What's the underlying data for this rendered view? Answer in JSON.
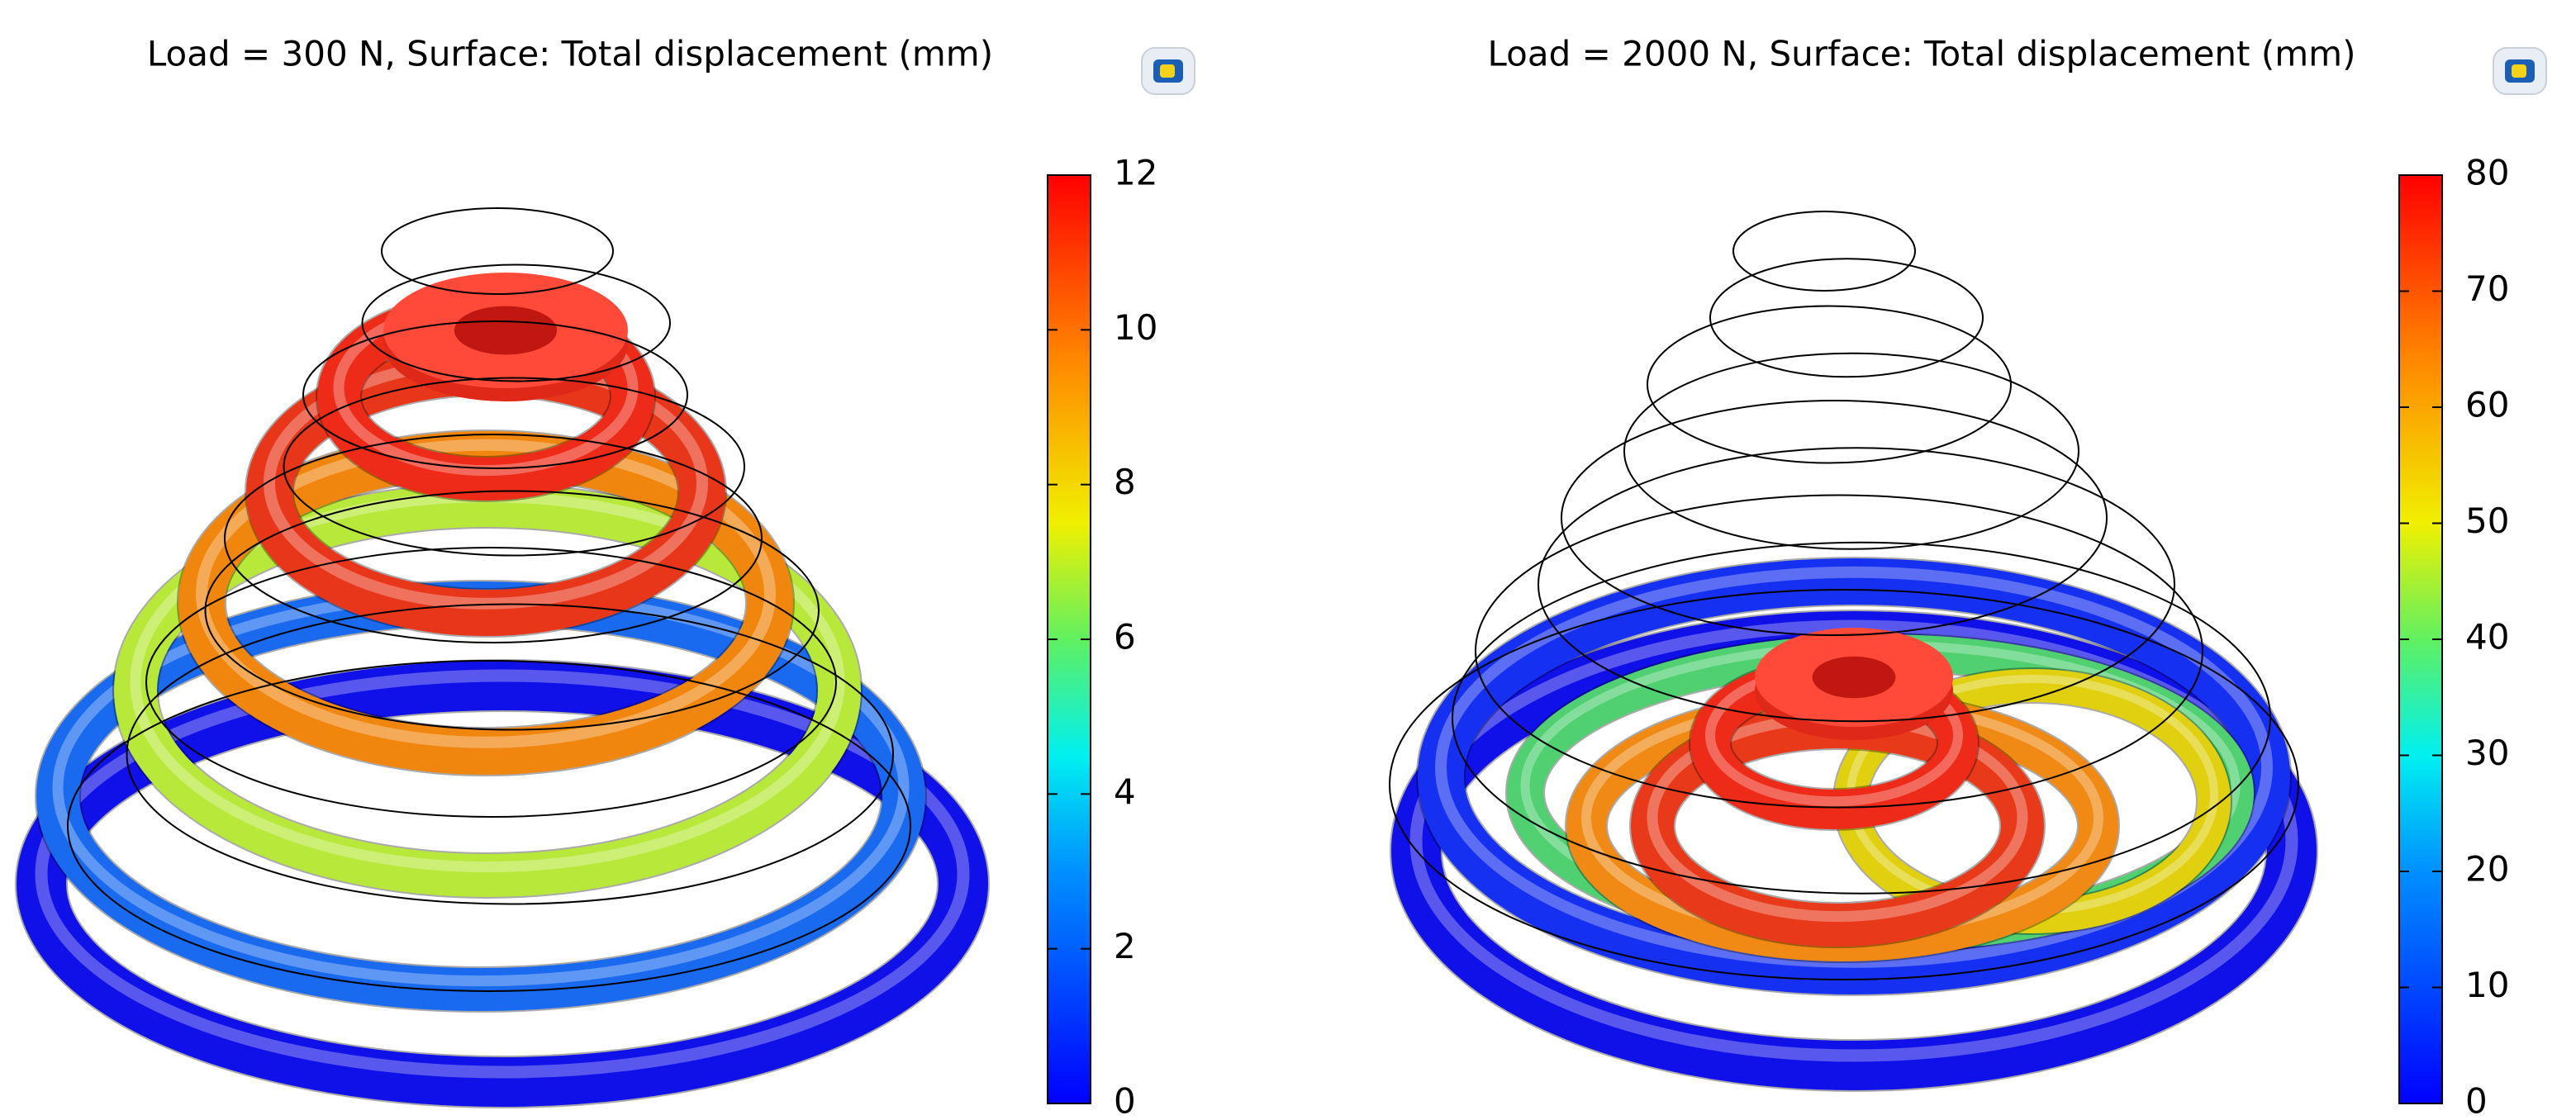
{
  "panels": [
    {
      "title": "Load = 300 N, Surface: Total displacement (mm)",
      "colorbar": {
        "range": [
          0,
          12
        ],
        "ticks": [
          0,
          2,
          4,
          6,
          8,
          10,
          12
        ]
      }
    },
    {
      "title": "Load = 2000 N, Surface: Total displacement (mm)",
      "colorbar": {
        "range": [
          0,
          80
        ],
        "ticks": [
          0,
          10,
          20,
          30,
          40,
          50,
          60,
          70,
          80
        ]
      }
    }
  ]
}
